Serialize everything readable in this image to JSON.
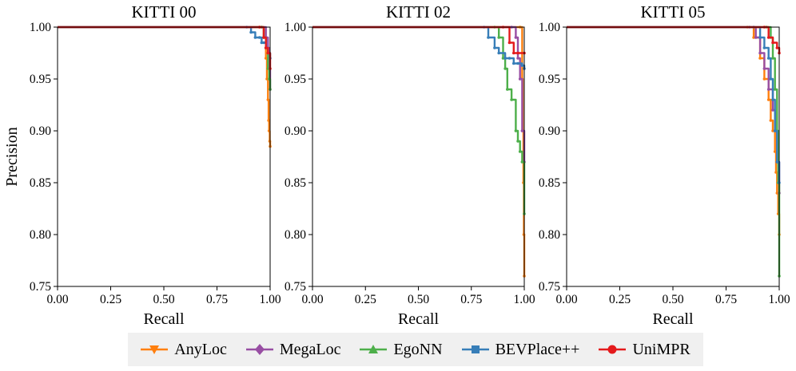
{
  "chart_data": [
    {
      "type": "line",
      "title": "KITTI 00",
      "xlabel": "Recall",
      "ylabel": "Precision",
      "xlim": [
        0,
        1
      ],
      "ylim": [
        0.75,
        1.0
      ],
      "xticks": [
        "0.00",
        "0.25",
        "0.50",
        "0.75",
        "1.00"
      ],
      "yticks": [
        "0.75",
        "0.80",
        "0.85",
        "0.90",
        "0.95",
        "1.00"
      ],
      "series": [
        {
          "name": "AnyLoc",
          "x": [
            0,
            0.95,
            0.97,
            0.98,
            0.985,
            0.99,
            0.993,
            0.995,
            0.998,
            1.0
          ],
          "y": [
            1,
            1,
            0.99,
            0.97,
            0.95,
            0.93,
            0.91,
            0.9,
            0.89,
            0.885
          ]
        },
        {
          "name": "MegaLoc",
          "x": [
            0,
            0.96,
            0.98,
            0.99,
            0.995,
            1.0
          ],
          "y": [
            1,
            1,
            0.99,
            0.98,
            0.96,
            0.94
          ]
        },
        {
          "name": "EgoNN",
          "x": [
            0,
            0.96,
            0.97,
            0.98,
            0.99,
            0.995,
            1.0
          ],
          "y": [
            1,
            1,
            0.99,
            0.98,
            0.96,
            0.95,
            0.94
          ]
        },
        {
          "name": "BEVPlace++",
          "x": [
            0,
            0.89,
            0.91,
            0.93,
            0.95,
            0.96,
            0.97,
            0.98,
            0.99,
            1.0
          ],
          "y": [
            1,
            1,
            0.995,
            0.99,
            0.99,
            0.985,
            0.985,
            0.98,
            0.975,
            0.97
          ]
        },
        {
          "name": "UniMPR",
          "x": [
            0,
            0.95,
            0.97,
            0.98,
            0.99,
            1.0
          ],
          "y": [
            1,
            1,
            0.99,
            0.98,
            0.975,
            0.96
          ]
        }
      ]
    },
    {
      "type": "line",
      "title": "KITTI 02",
      "xlabel": "Recall",
      "ylabel": "",
      "xlim": [
        0,
        1
      ],
      "ylim": [
        0.75,
        1.0
      ],
      "xticks": [
        "0.00",
        "0.25",
        "0.50",
        "0.75",
        "1.00"
      ],
      "yticks": [
        "0.75",
        "0.80",
        "0.85",
        "0.90",
        "0.95",
        "1.00"
      ],
      "series": [
        {
          "name": "AnyLoc",
          "x": [
            0,
            0.98,
            0.99,
            0.993,
            0.996,
            0.998,
            1.0
          ],
          "y": [
            1,
            1,
            0.95,
            0.9,
            0.85,
            0.8,
            0.76
          ]
        },
        {
          "name": "MegaLoc",
          "x": [
            0,
            0.94,
            0.96,
            0.97,
            0.98,
            0.99,
            1.0
          ],
          "y": [
            1,
            1,
            0.99,
            0.97,
            0.95,
            0.9,
            0.87
          ]
        },
        {
          "name": "EgoNN",
          "x": [
            0,
            0.86,
            0.88,
            0.9,
            0.91,
            0.92,
            0.94,
            0.96,
            0.97,
            0.98,
            0.99,
            1.0
          ],
          "y": [
            1,
            1,
            0.99,
            0.97,
            0.96,
            0.94,
            0.93,
            0.9,
            0.89,
            0.88,
            0.87,
            0.82
          ]
        },
        {
          "name": "BEVPlace++",
          "x": [
            0,
            0.81,
            0.83,
            0.86,
            0.88,
            0.91,
            0.93,
            0.95,
            0.97,
            0.99,
            1.0
          ],
          "y": [
            1,
            1,
            0.99,
            0.98,
            0.975,
            0.97,
            0.97,
            0.965,
            0.965,
            0.963,
            0.96
          ]
        },
        {
          "name": "UniMPR",
          "x": [
            0,
            0.9,
            0.93,
            0.95,
            0.97,
            1.0
          ],
          "y": [
            1,
            1,
            0.985,
            0.975,
            0.975,
            0.975
          ]
        }
      ]
    },
    {
      "type": "line",
      "title": "KITTI 05",
      "xlabel": "Recall",
      "ylabel": "",
      "xlim": [
        0,
        1
      ],
      "ylim": [
        0.75,
        1.0
      ],
      "xticks": [
        "0.00",
        "0.25",
        "0.50",
        "0.75",
        "1.00"
      ],
      "yticks": [
        "0.75",
        "0.80",
        "0.85",
        "0.90",
        "0.95",
        "1.00"
      ],
      "series": [
        {
          "name": "AnyLoc",
          "x": [
            0,
            0.85,
            0.88,
            0.91,
            0.93,
            0.95,
            0.96,
            0.97,
            0.98,
            0.985,
            0.99,
            0.995,
            1.0
          ],
          "y": [
            1,
            1,
            0.99,
            0.97,
            0.95,
            0.93,
            0.91,
            0.9,
            0.88,
            0.86,
            0.84,
            0.82,
            0.8
          ]
        },
        {
          "name": "MegaLoc",
          "x": [
            0,
            0.86,
            0.89,
            0.91,
            0.93,
            0.95,
            0.97,
            0.98,
            0.99,
            1.0
          ],
          "y": [
            1,
            1,
            0.99,
            0.975,
            0.96,
            0.94,
            0.92,
            0.9,
            0.87,
            0.84
          ]
        },
        {
          "name": "EgoNN",
          "x": [
            0,
            0.94,
            0.96,
            0.97,
            0.98,
            0.99,
            0.995,
            1.0
          ],
          "y": [
            1,
            1,
            0.99,
            0.97,
            0.94,
            0.9,
            0.85,
            0.76
          ]
        },
        {
          "name": "BEVPlace++",
          "x": [
            0,
            0.88,
            0.91,
            0.93,
            0.95,
            0.96,
            0.97,
            0.98,
            0.99,
            1.0
          ],
          "y": [
            1,
            1,
            0.99,
            0.98,
            0.97,
            0.95,
            0.93,
            0.9,
            0.87,
            0.85
          ]
        },
        {
          "name": "UniMPR",
          "x": [
            0,
            0.93,
            0.95,
            0.97,
            0.99,
            1.0
          ],
          "y": [
            1,
            1,
            0.99,
            0.985,
            0.98,
            0.975
          ]
        }
      ]
    }
  ],
  "legend": [
    {
      "name": "AnyLoc",
      "marker": "triangle-down",
      "color": "#ff7f0e"
    },
    {
      "name": "MegaLoc",
      "marker": "diamond",
      "color": "#984ea3"
    },
    {
      "name": "EgoNN",
      "marker": "triangle-up",
      "color": "#4daf4a"
    },
    {
      "name": "BEVPlace++",
      "marker": "square",
      "color": "#377eb8"
    },
    {
      "name": "UniMPR",
      "marker": "circle",
      "color": "#e41a1c"
    }
  ]
}
